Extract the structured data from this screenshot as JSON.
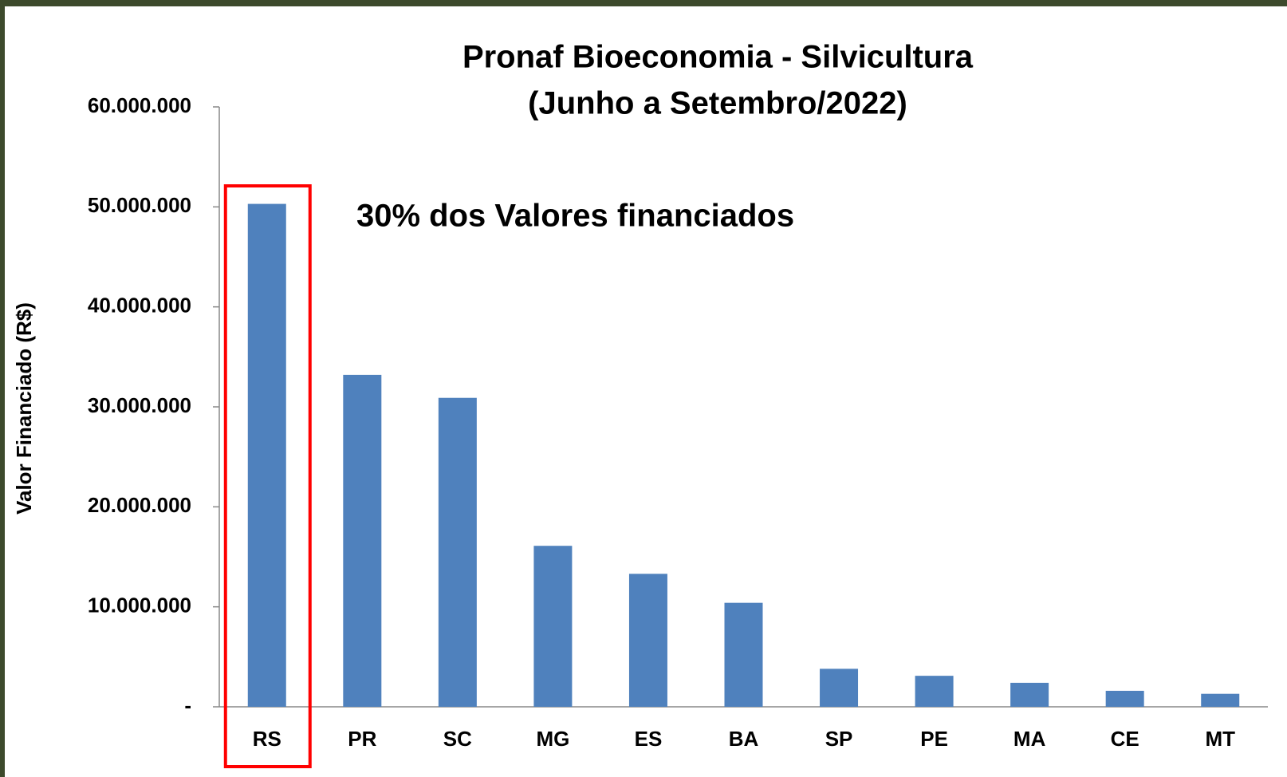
{
  "chart_data": {
    "type": "bar",
    "title": [
      "Pronaf Bioeconomia - Silvicultura",
      "(Junho a Setembro/2022)"
    ],
    "annotation": "30% dos Valores financiados",
    "y_label": "Valor Financiado (R$)",
    "categories": [
      "RS",
      "PR",
      "SC",
      "MG",
      "ES",
      "BA",
      "SP",
      "PE",
      "MA",
      "CE",
      "MT"
    ],
    "values": [
      50300000,
      33200000,
      30900000,
      16100000,
      13300000,
      10400000,
      3800000,
      3100000,
      2400000,
      1600000,
      1300000
    ],
    "color": "#4f81bd",
    "ylim": [
      0,
      60000000
    ],
    "yticks": [
      {
        "value": 0,
        "label": "-"
      },
      {
        "value": 10000000,
        "label": "10.000.000"
      },
      {
        "value": 20000000,
        "label": "20.000.000"
      },
      {
        "value": 30000000,
        "label": "30.000.000"
      },
      {
        "value": 40000000,
        "label": "40.000.000"
      },
      {
        "value": 50000000,
        "label": "50.000.000"
      },
      {
        "value": 60000000,
        "label": "60.000.000"
      }
    ],
    "grid": false
  }
}
